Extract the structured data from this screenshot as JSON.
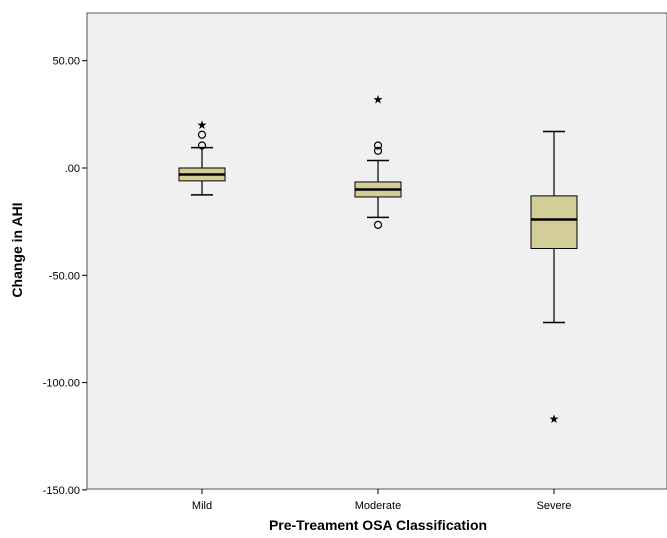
{
  "chart_data": {
    "type": "boxplot",
    "title": "",
    "xlabel": "Pre-Treament OSA Classification",
    "ylabel": "Change in AHI",
    "ylim": [
      -150,
      74
    ],
    "yticks": [
      50,
      0,
      -50,
      -100,
      -150
    ],
    "ytick_labels": [
      "50.00",
      ".00",
      "-50.00",
      "-100.00",
      "-150.00"
    ],
    "categories": [
      "Mild",
      "Moderate",
      "Severe"
    ],
    "boxes": [
      {
        "category": "Mild",
        "whisker_low": -12.5,
        "q1": -6,
        "median": -3,
        "q3": 0,
        "whisker_high": 9.5,
        "outliers": [
          10.5,
          15.5
        ],
        "extremes": [
          20
        ]
      },
      {
        "category": "Moderate",
        "whisker_low": -23,
        "q1": -13.5,
        "median": -10,
        "q3": -6.5,
        "whisker_high": 3.5,
        "outliers": [
          -26.5,
          8,
          10.5
        ],
        "extremes": [
          32
        ]
      },
      {
        "category": "Severe",
        "whisker_low": -72,
        "q1": -37.5,
        "median": -24,
        "q3": -13,
        "whisker_high": 17,
        "outliers": [],
        "extremes": [
          -117
        ]
      }
    ],
    "grid": false,
    "colors": {
      "box_fill": "#d3cd98",
      "plot_bg": "#f0f0f0",
      "stroke": "#000000"
    }
  }
}
